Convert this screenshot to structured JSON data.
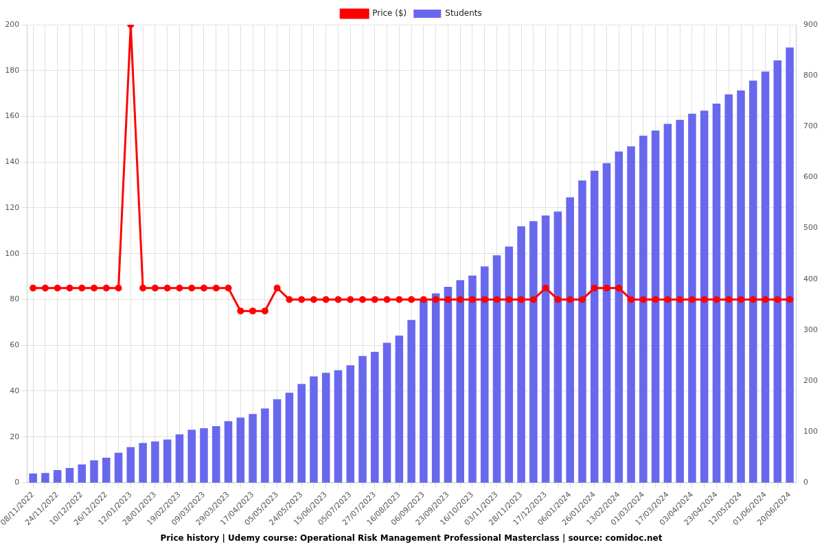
{
  "chart_data": {
    "type": "bar",
    "title": "Price history | Udemy course: Operational Risk Management Professional Masterclass | source: comidoc.net",
    "categories": [
      "08/11/2022",
      null,
      "24/11/2022",
      null,
      "10/12/2022",
      null,
      "26/12/2022",
      null,
      "12/01/2023",
      null,
      "28/01/2023",
      null,
      "19/02/2023",
      null,
      "09/03/2023",
      null,
      "29/03/2023",
      null,
      "17/04/2023",
      null,
      "05/05/2023",
      null,
      "24/05/2023",
      null,
      "15/06/2023",
      null,
      "05/07/2023",
      null,
      "27/07/2023",
      null,
      "16/08/2023",
      null,
      "06/09/2023",
      null,
      "23/09/2023",
      null,
      "16/10/2023",
      null,
      "03/11/2023",
      null,
      "28/11/2023",
      null,
      "17/12/2023",
      null,
      "06/01/2024",
      null,
      "26/01/2024",
      null,
      "13/02/2024",
      null,
      "01/03/2024",
      null,
      "17/03/2024",
      null,
      "03/04/2024",
      null,
      "23/04/2024",
      null,
      "12/05/2024",
      null,
      "01/06/2024",
      null,
      "20/06/2024"
    ],
    "series": [
      {
        "name": "Price ($)",
        "type": "line",
        "color": "#ff0000",
        "marker": "circle",
        "axis": "y",
        "values": [
          85,
          85,
          85,
          85,
          85,
          85,
          85,
          85,
          200,
          85,
          85,
          85,
          85,
          85,
          85,
          85,
          85,
          75,
          75,
          75,
          85,
          80,
          80,
          80,
          80,
          80,
          80,
          80,
          80,
          80,
          80,
          80,
          80,
          80,
          80,
          80,
          80,
          80,
          80,
          80,
          80,
          80,
          85,
          80,
          80,
          80,
          85,
          85,
          85,
          80,
          80,
          80,
          80,
          80,
          80,
          80,
          80,
          80,
          80,
          80,
          80,
          80,
          80
        ]
      },
      {
        "name": "Students",
        "type": "bar",
        "color": "#6868ee",
        "axis": "y2",
        "values": [
          18,
          19,
          25,
          29,
          36,
          44,
          49,
          59,
          70,
          78,
          81,
          85,
          95,
          104,
          107,
          111,
          121,
          128,
          135,
          146,
          164,
          177,
          194,
          209,
          216,
          221,
          231,
          249,
          257,
          275,
          289,
          320,
          360,
          372,
          385,
          398,
          407,
          425,
          447,
          464,
          504,
          514,
          525,
          533,
          561,
          594,
          613,
          628,
          651,
          661,
          682,
          692,
          705,
          713,
          725,
          731,
          745,
          763,
          771,
          790,
          808,
          830,
          855
        ]
      }
    ],
    "ylim": [
      0,
      200
    ],
    "yticks": [
      0,
      20,
      40,
      60,
      80,
      100,
      120,
      140,
      160,
      180,
      200
    ],
    "y2lim": [
      0,
      900
    ],
    "y2ticks": [
      0,
      100,
      200,
      300,
      400,
      500,
      600,
      700,
      800,
      900
    ],
    "grid": true,
    "legend": "top"
  }
}
